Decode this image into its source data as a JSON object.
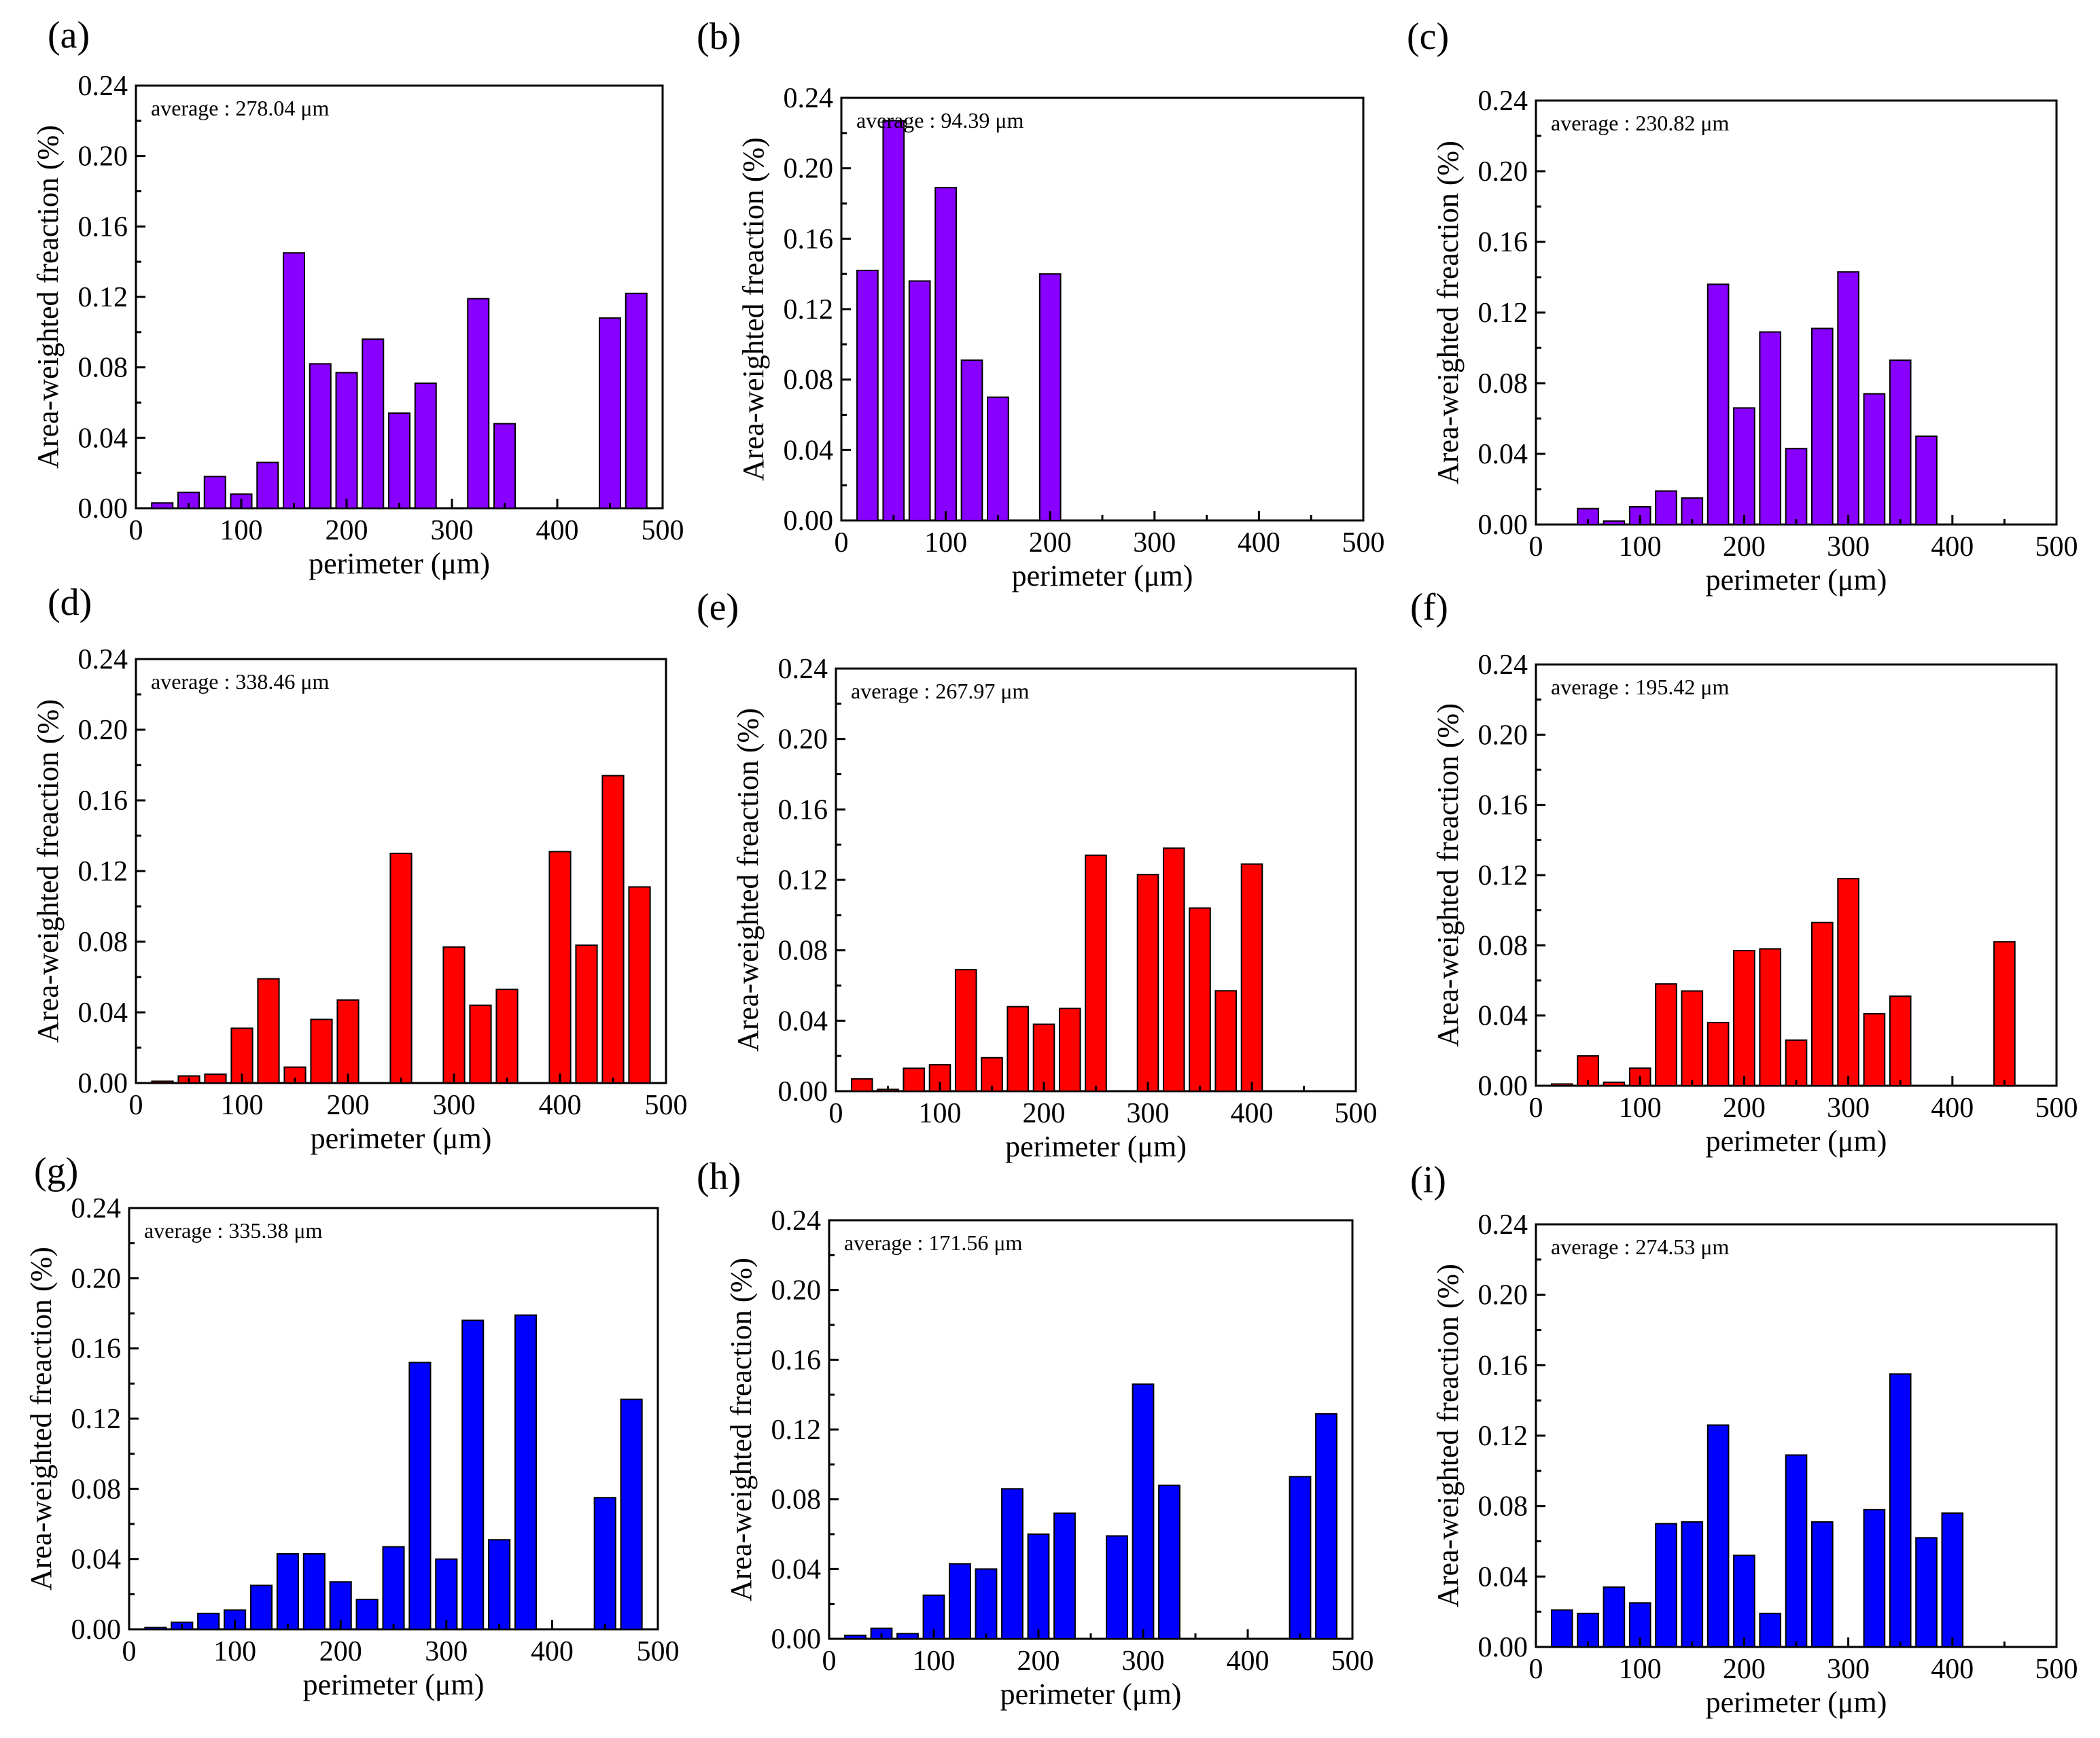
{
  "chart_data": [
    {
      "id": "a",
      "type": "bar",
      "label": "(a)",
      "annotation": "average : 278.04 μm",
      "xlabel": "perimeter (μm)",
      "ylabel": "Area-weighted freaction (%)",
      "xlim": [
        0,
        500
      ],
      "ylim": [
        0,
        0.24
      ],
      "xticks": [
        "0",
        "100",
        "200",
        "300",
        "400",
        "500"
      ],
      "yticks": [
        "0.00",
        "0.04",
        "0.08",
        "0.12",
        "0.16",
        "0.20",
        "0.24"
      ],
      "color": "#8800FF",
      "x": [
        25,
        50,
        75,
        100,
        125,
        150,
        175,
        200,
        225,
        250,
        275,
        325,
        350,
        450,
        475
      ],
      "values": [
        0.003,
        0.009,
        0.018,
        0.008,
        0.026,
        0.145,
        0.082,
        0.077,
        0.096,
        0.054,
        0.071,
        0.119,
        0.048,
        0.108,
        0.122
      ]
    },
    {
      "id": "b",
      "type": "bar",
      "label": "(b)",
      "annotation": "average : 94.39 μm",
      "xlabel": "perimeter (μm)",
      "ylabel": "Area-weighted freaction (%)",
      "xlim": [
        0,
        500
      ],
      "ylim": [
        0,
        0.24
      ],
      "xticks": [
        "0",
        "100",
        "200",
        "300",
        "400",
        "500"
      ],
      "yticks": [
        "0.00",
        "0.04",
        "0.08",
        "0.12",
        "0.16",
        "0.20",
        "0.24"
      ],
      "color": "#8800FF",
      "x": [
        25,
        50,
        75,
        100,
        125,
        150,
        200
      ],
      "values": [
        0.142,
        0.227,
        0.136,
        0.189,
        0.091,
        0.07,
        0.14
      ]
    },
    {
      "id": "c",
      "type": "bar",
      "label": "(c)",
      "annotation": "average : 230.82 μm",
      "xlabel": "perimeter (μm)",
      "ylabel": "Area-weighted freaction (%)",
      "xlim": [
        0,
        500
      ],
      "ylim": [
        0,
        0.24
      ],
      "xticks": [
        "0",
        "100",
        "200",
        "300",
        "400",
        "500"
      ],
      "yticks": [
        "0.00",
        "0.04",
        "0.08",
        "0.12",
        "0.16",
        "0.20",
        "0.24"
      ],
      "color": "#8800FF",
      "x": [
        50,
        75,
        100,
        125,
        150,
        175,
        200,
        225,
        250,
        275,
        300,
        325,
        350,
        375
      ],
      "values": [
        0.009,
        0.002,
        0.01,
        0.019,
        0.015,
        0.136,
        0.066,
        0.109,
        0.043,
        0.111,
        0.143,
        0.074,
        0.093,
        0.05
      ]
    },
    {
      "id": "d",
      "type": "bar",
      "label": "(d)",
      "annotation": "average : 338.46 μm",
      "xlabel": "perimeter (μm)",
      "ylabel": "Area-weighted freaction (%)",
      "xlim": [
        0,
        500
      ],
      "ylim": [
        0,
        0.24
      ],
      "xticks": [
        "0",
        "100",
        "200",
        "300",
        "400",
        "500"
      ],
      "yticks": [
        "0.00",
        "0.04",
        "0.08",
        "0.12",
        "0.16",
        "0.20",
        "0.24"
      ],
      "color": "#FF0000",
      "x": [
        25,
        50,
        75,
        100,
        125,
        150,
        175,
        200,
        250,
        300,
        325,
        350,
        400,
        425,
        450,
        475
      ],
      "values": [
        0.001,
        0.004,
        0.005,
        0.031,
        0.059,
        0.009,
        0.036,
        0.047,
        0.13,
        0.077,
        0.044,
        0.053,
        0.131,
        0.078,
        0.174,
        0.111
      ]
    },
    {
      "id": "e",
      "type": "bar",
      "label": "(e)",
      "annotation": "average : 267.97 μm",
      "xlabel": "perimeter (μm)",
      "ylabel": "Area-weighted freaction (%)",
      "xlim": [
        0,
        500
      ],
      "ylim": [
        0,
        0.24
      ],
      "xticks": [
        "0",
        "100",
        "200",
        "300",
        "400",
        "500"
      ],
      "yticks": [
        "0.00",
        "0.04",
        "0.08",
        "0.12",
        "0.16",
        "0.20",
        "0.24"
      ],
      "color": "#FF0000",
      "x": [
        25,
        50,
        75,
        100,
        125,
        150,
        175,
        200,
        225,
        250,
        300,
        325,
        350,
        375,
        400
      ],
      "values": [
        0.007,
        0.001,
        0.013,
        0.015,
        0.069,
        0.019,
        0.048,
        0.038,
        0.047,
        0.134,
        0.123,
        0.138,
        0.104,
        0.057,
        0.129
      ]
    },
    {
      "id": "f",
      "type": "bar",
      "label": "(f)",
      "annotation": "average : 195.42 μm",
      "xlabel": "perimeter (μm)",
      "ylabel": "Area-weighted freaction (%)",
      "xlim": [
        0,
        500
      ],
      "ylim": [
        0,
        0.24
      ],
      "xticks": [
        "0",
        "100",
        "200",
        "300",
        "400",
        "500"
      ],
      "yticks": [
        "0.00",
        "0.04",
        "0.08",
        "0.12",
        "0.16",
        "0.20",
        "0.24"
      ],
      "color": "#FF0000",
      "x": [
        25,
        50,
        75,
        100,
        125,
        150,
        175,
        200,
        225,
        250,
        275,
        300,
        325,
        350,
        450
      ],
      "values": [
        0.001,
        0.017,
        0.002,
        0.01,
        0.058,
        0.054,
        0.036,
        0.077,
        0.078,
        0.026,
        0.093,
        0.118,
        0.041,
        0.051,
        0.082
      ]
    },
    {
      "id": "g",
      "type": "bar",
      "label": "(g)",
      "annotation": "average : 335.38 μm",
      "xlabel": "perimeter (μm)",
      "ylabel": "Area-weighted freaction (%)",
      "xlim": [
        0,
        500
      ],
      "ylim": [
        0,
        0.24
      ],
      "xticks": [
        "0",
        "100",
        "200",
        "300",
        "400",
        "500"
      ],
      "yticks": [
        "0.00",
        "0.04",
        "0.08",
        "0.12",
        "0.16",
        "0.20",
        "0.24"
      ],
      "color": "#0000FF",
      "x": [
        25,
        50,
        75,
        100,
        125,
        150,
        175,
        200,
        225,
        250,
        275,
        300,
        325,
        350,
        375,
        450,
        475
      ],
      "values": [
        0.001,
        0.004,
        0.009,
        0.011,
        0.025,
        0.043,
        0.043,
        0.027,
        0.017,
        0.047,
        0.152,
        0.04,
        0.176,
        0.051,
        0.179,
        0.075,
        0.131
      ]
    },
    {
      "id": "h",
      "type": "bar",
      "label": "(h)",
      "annotation": "average : 171.56 μm",
      "xlabel": "perimeter (μm)",
      "ylabel": "Area-weighted freaction (%)",
      "xlim": [
        0,
        500
      ],
      "ylim": [
        0,
        0.24
      ],
      "xticks": [
        "0",
        "100",
        "200",
        "300",
        "400",
        "500"
      ],
      "yticks": [
        "0.00",
        "0.04",
        "0.08",
        "0.12",
        "0.16",
        "0.20",
        "0.24"
      ],
      "color": "#0000FF",
      "x": [
        25,
        50,
        75,
        100,
        125,
        150,
        175,
        200,
        225,
        275,
        300,
        325,
        450,
        475
      ],
      "values": [
        0.002,
        0.006,
        0.003,
        0.025,
        0.043,
        0.04,
        0.086,
        0.06,
        0.072,
        0.059,
        0.146,
        0.088,
        0.093,
        0.129
      ]
    },
    {
      "id": "i",
      "type": "bar",
      "label": "(i)",
      "annotation": "average : 274.53 μm",
      "xlabel": "perimeter (μm)",
      "ylabel": "Area-weighted freaction (%)",
      "xlim": [
        0,
        500
      ],
      "ylim": [
        0,
        0.24
      ],
      "xticks": [
        "0",
        "100",
        "200",
        "300",
        "400",
        "500"
      ],
      "yticks": [
        "0.00",
        "0.04",
        "0.08",
        "0.12",
        "0.16",
        "0.20",
        "0.24"
      ],
      "color": "#0000FF",
      "x": [
        25,
        50,
        75,
        100,
        125,
        150,
        175,
        200,
        225,
        250,
        275,
        325,
        350,
        375,
        400
      ],
      "values": [
        0.021,
        0.019,
        0.034,
        0.025,
        0.07,
        0.071,
        0.126,
        0.052,
        0.019,
        0.109,
        0.071,
        0.078,
        0.155,
        0.062,
        0.076
      ]
    }
  ]
}
